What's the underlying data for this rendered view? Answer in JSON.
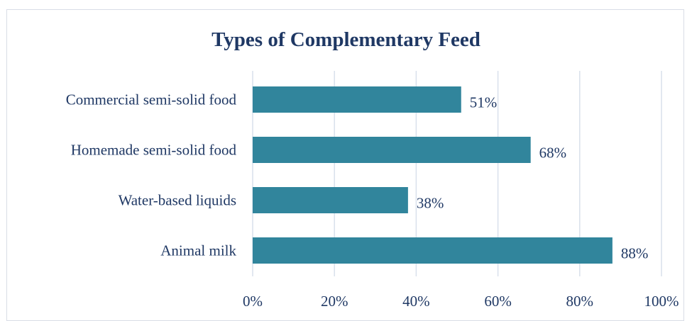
{
  "chart_data": {
    "type": "bar",
    "orientation": "horizontal",
    "title": "Types of Complementary Feed",
    "categories": [
      "Commercial semi-solid food",
      "Homemade semi-solid food",
      "Water-based liquids",
      "Animal milk"
    ],
    "values": [
      51,
      68,
      38,
      88
    ],
    "value_labels": [
      "51%",
      "68%",
      "38%",
      "88%"
    ],
    "xlim": [
      0,
      100
    ],
    "xticks": [
      0,
      20,
      40,
      60,
      80,
      100
    ],
    "xtick_labels": [
      "0%",
      "20%",
      "40%",
      "60%",
      "80%",
      "100%"
    ],
    "xlabel": "",
    "ylabel": "",
    "grid": "vertical",
    "legend": "none",
    "colors": {
      "bar": "#31859c",
      "title": "#1f3864",
      "text": "#1f3864",
      "grid": "#d9e1ec"
    }
  }
}
